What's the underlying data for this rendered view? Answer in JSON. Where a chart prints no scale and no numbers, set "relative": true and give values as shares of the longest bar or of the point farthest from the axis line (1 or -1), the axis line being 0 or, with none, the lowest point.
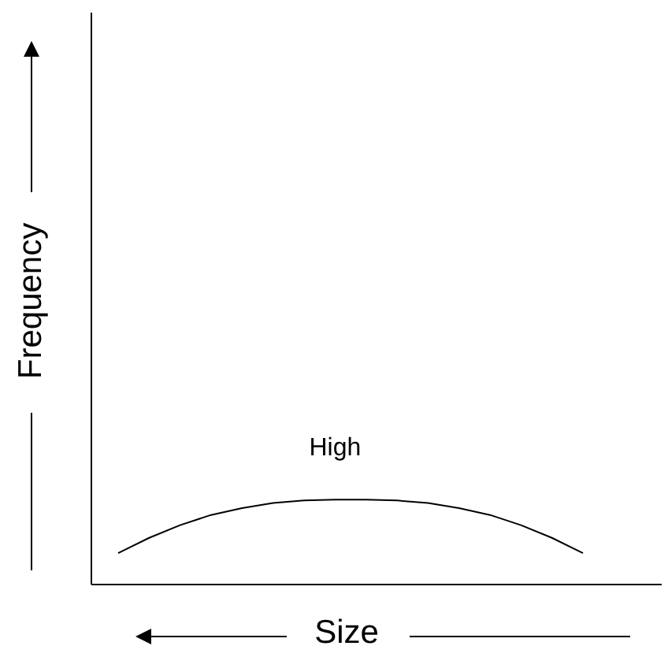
{
  "chart_data": {
    "type": "line",
    "relative": true,
    "xlabel": "Size",
    "ylabel": "Frequency",
    "annotations": [
      "High"
    ],
    "color": "#000000",
    "categories": [
      null,
      null,
      null,
      null,
      null,
      null,
      null,
      null,
      null,
      null,
      null,
      null,
      null,
      null,
      null,
      null
    ],
    "values": [
      0.37,
      0.55,
      0.7,
      0.82,
      0.9,
      0.96,
      0.99,
      1.0,
      1.0,
      0.99,
      0.96,
      0.9,
      0.82,
      0.7,
      0.55,
      0.37
    ]
  }
}
